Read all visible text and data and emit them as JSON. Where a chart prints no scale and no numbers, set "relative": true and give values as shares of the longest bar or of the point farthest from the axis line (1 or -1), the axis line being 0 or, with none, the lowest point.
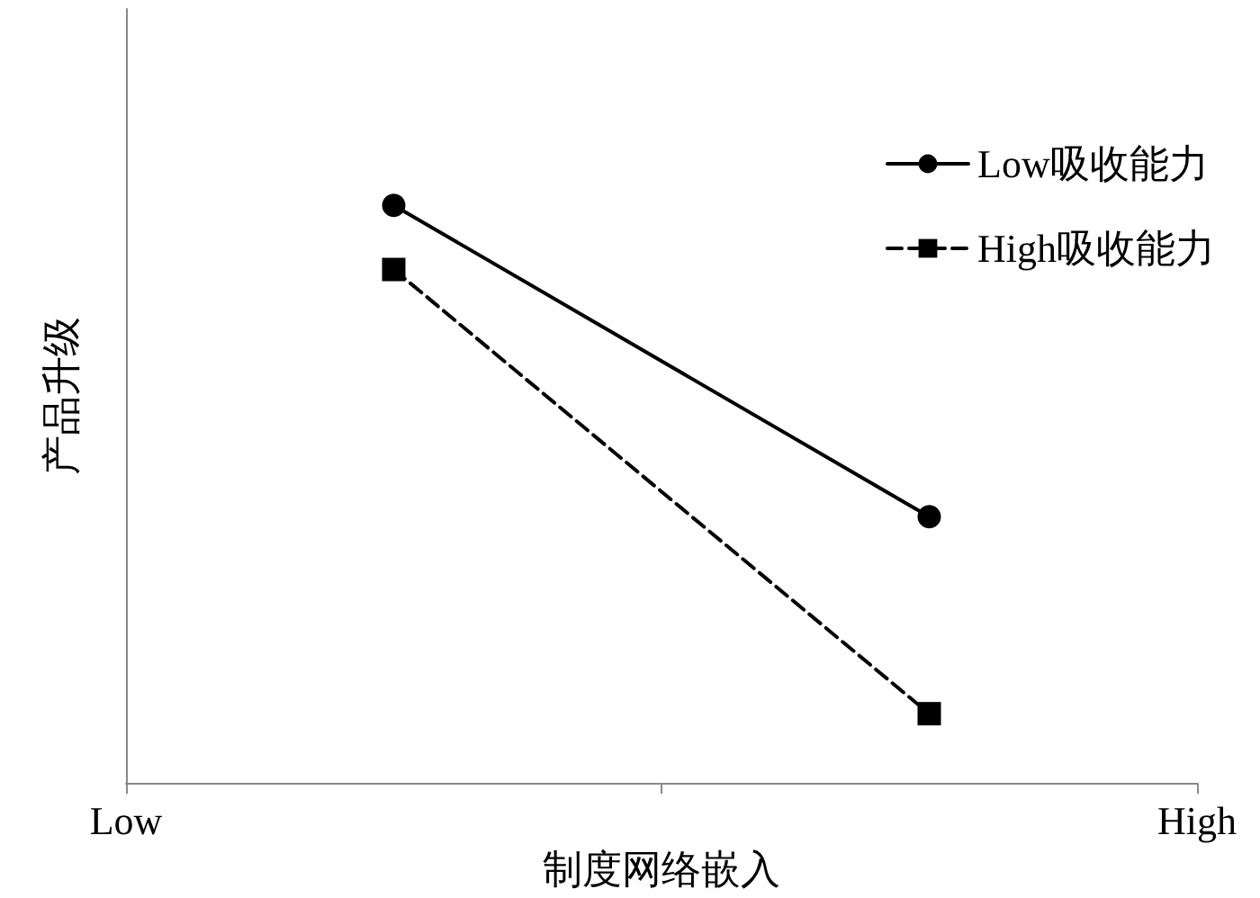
{
  "chart_data": {
    "type": "line",
    "relative": true,
    "xlabel": "制度网络嵌入",
    "ylabel": "产品升级",
    "categories": [
      "Low",
      null,
      null,
      null,
      "High"
    ],
    "legend": "top right",
    "grid": false,
    "series": [
      {
        "name": "Low吸收能力",
        "color": "#000000",
        "values": [
          null,
          1,
          null,
          0.461,
          null
        ],
        "marker": "circle",
        "line_style": "solid"
      },
      {
        "name": "High吸收能力",
        "color": "#000000",
        "values": [
          null,
          0.889,
          null,
          0.12,
          null
        ],
        "marker": "square",
        "line_style": "dashed"
      }
    ]
  }
}
